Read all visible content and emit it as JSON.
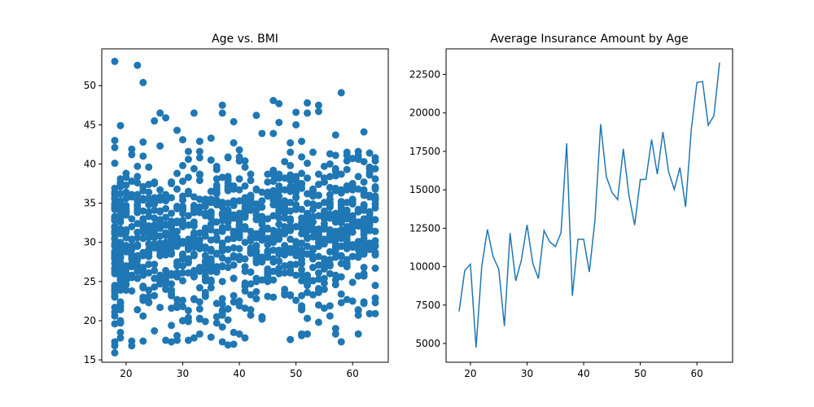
{
  "chart_data": [
    {
      "type": "scatter",
      "title": "Age vs. BMI",
      "xlabel": "",
      "ylabel": "",
      "xlim": [
        15.7,
        66.3
      ],
      "ylim": [
        14.7,
        54.7
      ],
      "xticks": [
        20,
        30,
        40,
        50,
        60
      ],
      "yticks": [
        15,
        20,
        25,
        30,
        35,
        40,
        45,
        50
      ],
      "color": "#1f77b4",
      "grid": false,
      "point_count_note": "",
      "highlight_points": [
        {
          "x": 18,
          "y": 53.1
        },
        {
          "x": 22,
          "y": 52.6
        },
        {
          "x": 23,
          "y": 50.4
        },
        {
          "x": 19,
          "y": 44.9
        },
        {
          "x": 25,
          "y": 45.5
        },
        {
          "x": 26,
          "y": 46.5
        },
        {
          "x": 27,
          "y": 45.9
        },
        {
          "x": 32,
          "y": 46.5
        },
        {
          "x": 37,
          "y": 47.5
        },
        {
          "x": 37,
          "y": 46.5
        },
        {
          "x": 39,
          "y": 45.4
        },
        {
          "x": 43,
          "y": 46.2
        },
        {
          "x": 46,
          "y": 48.1
        },
        {
          "x": 47,
          "y": 47.7
        },
        {
          "x": 47,
          "y": 45.3
        },
        {
          "x": 50,
          "y": 46.6
        },
        {
          "x": 50,
          "y": 45.0
        },
        {
          "x": 52,
          "y": 47.8
        },
        {
          "x": 52,
          "y": 46.5
        },
        {
          "x": 54,
          "y": 47.5
        },
        {
          "x": 54,
          "y": 46.7
        },
        {
          "x": 58,
          "y": 49.1
        },
        {
          "x": 57,
          "y": 43.7
        },
        {
          "x": 62,
          "y": 44.1
        },
        {
          "x": 18,
          "y": 15.9
        },
        {
          "x": 18,
          "y": 17.3
        },
        {
          "x": 19,
          "y": 17.8
        },
        {
          "x": 19,
          "y": 18.5
        },
        {
          "x": 21,
          "y": 16.8
        },
        {
          "x": 21,
          "y": 17.4
        },
        {
          "x": 23,
          "y": 17.4
        },
        {
          "x": 27,
          "y": 17.5
        },
        {
          "x": 28,
          "y": 17.3
        },
        {
          "x": 32,
          "y": 17.8
        },
        {
          "x": 35,
          "y": 17.9
        },
        {
          "x": 37,
          "y": 17.3
        },
        {
          "x": 38,
          "y": 16.9
        },
        {
          "x": 40,
          "y": 18.3
        },
        {
          "x": 51,
          "y": 18.1
        },
        {
          "x": 52,
          "y": 18.3
        },
        {
          "x": 57,
          "y": 18.3
        },
        {
          "x": 61,
          "y": 18.3
        },
        {
          "x": 18,
          "y": 43.0
        },
        {
          "x": 18,
          "y": 42.1
        },
        {
          "x": 23,
          "y": 42.8
        },
        {
          "x": 26,
          "y": 42.3
        },
        {
          "x": 29,
          "y": 44.3
        },
        {
          "x": 30,
          "y": 43.1
        },
        {
          "x": 33,
          "y": 42.9
        },
        {
          "x": 35,
          "y": 43.3
        },
        {
          "x": 39,
          "y": 42.7
        },
        {
          "x": 44,
          "y": 43.9
        },
        {
          "x": 46,
          "y": 43.9
        },
        {
          "x": 49,
          "y": 42.7
        },
        {
          "x": 51,
          "y": 42.9
        },
        {
          "x": 56,
          "y": 41.3
        },
        {
          "x": 59,
          "y": 41.1
        },
        {
          "x": 63,
          "y": 41.4
        },
        {
          "x": 64,
          "y": 40.4
        }
      ]
    },
    {
      "type": "line",
      "title": "Average Insurance Amount by Age",
      "xlabel": "",
      "ylabel": "",
      "xlim": [
        15.7,
        66.3
      ],
      "ylim": [
        3780,
        24170
      ],
      "xticks": [
        20,
        30,
        40,
        50,
        60
      ],
      "yticks": [
        5000,
        7500,
        10000,
        12500,
        15000,
        17500,
        20000,
        22500
      ],
      "color": "#1f77b4",
      "grid": false,
      "x": [
        18,
        19,
        20,
        21,
        22,
        23,
        24,
        25,
        26,
        27,
        28,
        29,
        30,
        31,
        32,
        33,
        34,
        35,
        36,
        37,
        38,
        39,
        40,
        41,
        42,
        43,
        44,
        45,
        46,
        47,
        48,
        49,
        50,
        51,
        52,
        53,
        54,
        55,
        56,
        57,
        58,
        59,
        60,
        61,
        62,
        63,
        64
      ],
      "y": [
        7086,
        9748,
        10160,
        4730,
        10012,
        12420,
        10648,
        9838,
        6133,
        12184,
        9069,
        10431,
        12720,
        10238,
        9221,
        12352,
        11614,
        11307,
        12204,
        18019,
        8102,
        11779,
        11776,
        9653,
        13062,
        19268,
        15859,
        14831,
        14362,
        17663,
        14632,
        12696,
        15663,
        15682,
        18268,
        16020,
        18758,
        16164,
        15026,
        16448,
        13878,
        18896,
        21984,
        22042,
        19199,
        19819,
        23275
      ]
    }
  ]
}
